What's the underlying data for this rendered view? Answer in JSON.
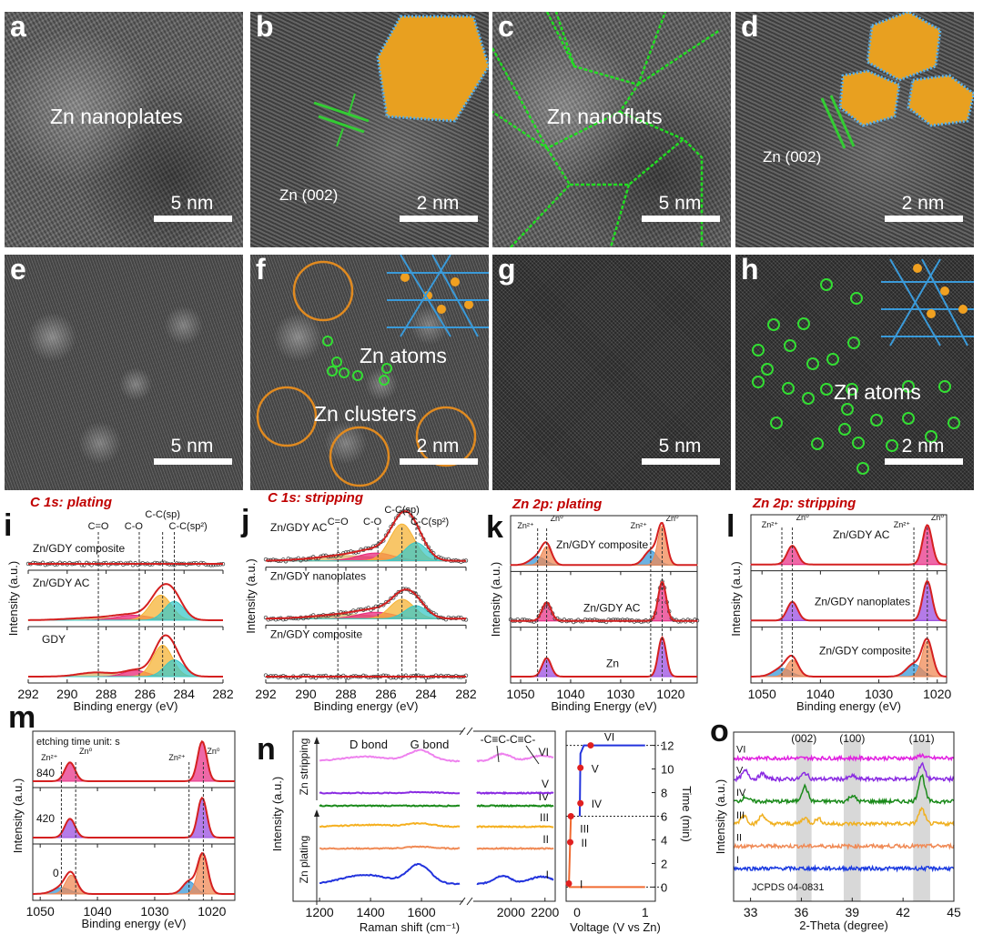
{
  "images": [
    {
      "letter": "a",
      "text": "Zn nanoplates",
      "scale": "5 nm"
    },
    {
      "letter": "b",
      "text": "Zn (002)",
      "scale": "2 nm"
    },
    {
      "letter": "c",
      "text": "Zn nanoflats",
      "scale": "5 nm"
    },
    {
      "letter": "d",
      "text": "Zn (002)",
      "scale": "2 nm"
    },
    {
      "letter": "e",
      "scale": "5 nm"
    },
    {
      "letter": "f",
      "text": "Zn atoms",
      "text2": "Zn clusters",
      "scale": "2 nm"
    },
    {
      "letter": "g",
      "scale": "5 nm"
    },
    {
      "letter": "h",
      "text": "Zn atoms",
      "scale": "2 nm"
    }
  ],
  "chart_data": [
    {
      "letter": "i",
      "type": "line",
      "title": "C 1s: plating",
      "xlabel": "Binding energy (eV)",
      "ylabel": "Intensity (a.u.)",
      "xlim": [
        292,
        282
      ],
      "xticks": [
        292,
        290,
        288,
        286,
        284,
        282
      ],
      "max_intensity": 1.0,
      "ref_lines": [
        {
          "x": 288.4,
          "label": "C=O"
        },
        {
          "x": 286.3,
          "label": "C-O"
        },
        {
          "x": 285.1,
          "label": "C-C(sp)"
        },
        {
          "x": 284.5,
          "label": "C-C(sp²)"
        }
      ],
      "traces": [
        {
          "name": "Zn/GDY composite",
          "markers": true,
          "components": []
        },
        {
          "name": "Zn/GDY AC",
          "components": [
            {
              "center": 288.5,
              "height": 0.06,
              "width": 1.4,
              "color": "#d9b56a"
            },
            {
              "center": 286.6,
              "height": 0.12,
              "width": 0.9,
              "color": "#e8287a"
            },
            {
              "center": 285.2,
              "height": 0.6,
              "width": 0.55,
              "color": "#f5b335"
            },
            {
              "center": 284.5,
              "height": 0.45,
              "width": 0.5,
              "color": "#3cc8c8"
            }
          ]
        },
        {
          "name": "GDY",
          "components": [
            {
              "center": 288.5,
              "height": 0.1,
              "width": 0.9,
              "color": "#d9b56a"
            },
            {
              "center": 286.5,
              "height": 0.15,
              "width": 0.6,
              "color": "#e8287a"
            },
            {
              "center": 285.1,
              "height": 0.75,
              "width": 0.5,
              "color": "#f5b335"
            },
            {
              "center": 284.5,
              "height": 0.4,
              "width": 0.5,
              "color": "#3cc8c8"
            }
          ]
        }
      ]
    },
    {
      "letter": "j",
      "type": "line",
      "title": "C 1s: stripping",
      "xlabel": "Binding energy (eV)",
      "ylabel": "Intensity (a.u.)",
      "xlim": [
        292,
        282
      ],
      "xticks": [
        292,
        290,
        288,
        286,
        284,
        282
      ],
      "max_intensity": 1.0,
      "ref_lines": [
        {
          "x": 288.4,
          "label": "C=O"
        },
        {
          "x": 286.4,
          "label": "C-O"
        },
        {
          "x": 285.2,
          "label": "C-C(sp)"
        },
        {
          "x": 284.5,
          "label": "C-C(sp²)"
        }
      ],
      "traces": [
        {
          "name": "Zn/GDY AC",
          "markers": true,
          "components": [
            {
              "center": 288.0,
              "height": 0.12,
              "width": 1.5,
              "color": "#d9b56a"
            },
            {
              "center": 286.5,
              "height": 0.18,
              "width": 0.9,
              "color": "#e8287a"
            },
            {
              "center": 285.2,
              "height": 0.85,
              "width": 0.6,
              "color": "#f5b335"
            },
            {
              "center": 284.5,
              "height": 0.42,
              "width": 0.55,
              "color": "#3cc8c8"
            }
          ]
        },
        {
          "name": "Zn/GDY nanoplates",
          "markers": true,
          "components": [
            {
              "center": 288.0,
              "height": 0.1,
              "width": 1.5,
              "color": "#d9b56a"
            },
            {
              "center": 286.5,
              "height": 0.15,
              "width": 0.9,
              "color": "#e8287a"
            },
            {
              "center": 285.2,
              "height": 0.45,
              "width": 0.6,
              "color": "#f5b335"
            },
            {
              "center": 284.5,
              "height": 0.3,
              "width": 0.55,
              "color": "#3cc8c8"
            }
          ]
        },
        {
          "name": "Zn/GDY composite",
          "markers": true,
          "components": []
        }
      ]
    },
    {
      "letter": "k",
      "type": "line",
      "title": "Zn 2p: plating",
      "xlabel": "Binding Energy (eV)",
      "ylabel": "Intensity (a.u.)",
      "xlim": [
        1052,
        1014.7
      ],
      "xticks": [
        1050,
        1040,
        1030,
        1020
      ],
      "max_intensity": 1.0,
      "ref_lines": [
        {
          "x": 1046.6,
          "label": "Zn²⁺"
        },
        {
          "x": 1044.8,
          "label": "Zn⁰"
        },
        {
          "x": 1024.0,
          "label": "Zn²⁺"
        },
        {
          "x": 1021.7,
          "label": "Zn⁰"
        }
      ],
      "traces": [
        {
          "name": "Zn/GDY composite",
          "components": [
            {
              "center": 1046.6,
              "height": 0.2,
              "width": 1.5,
              "color": "#3a9ad9"
            },
            {
              "center": 1044.8,
              "height": 0.45,
              "width": 1.0,
              "color": "#f08a55"
            },
            {
              "center": 1024.0,
              "height": 0.35,
              "width": 1.3,
              "color": "#3a9ad9"
            },
            {
              "center": 1021.7,
              "height": 0.95,
              "width": 0.9,
              "color": "#f08a55"
            }
          ]
        },
        {
          "name": "Zn/GDY AC",
          "markers": true,
          "components": [
            {
              "center": 1044.8,
              "height": 0.45,
              "width": 0.9,
              "color": "#e8358a"
            },
            {
              "center": 1021.7,
              "height": 0.95,
              "width": 0.8,
              "color": "#e8358a"
            }
          ]
        },
        {
          "name": "Zn",
          "components": [
            {
              "center": 1044.8,
              "height": 0.45,
              "width": 0.9,
              "color": "#9b4fe0"
            },
            {
              "center": 1021.7,
              "height": 0.95,
              "width": 0.8,
              "color": "#9b4fe0"
            }
          ]
        }
      ]
    },
    {
      "letter": "l",
      "type": "line",
      "title": "Zn 2p: stripping",
      "xlabel": "Binding energy (eV)",
      "ylabel": "Intensity (a.u.)",
      "xlim": [
        1051.9,
        1018.4
      ],
      "xticks": [
        1050,
        1040,
        1030,
        1020
      ],
      "max_intensity": 1.0,
      "ref_lines": [
        {
          "x": 1046.6,
          "label": "Zn²⁺"
        },
        {
          "x": 1044.8,
          "label": "Zn⁰"
        },
        {
          "x": 1024.0,
          "label": "Zn²⁺"
        },
        {
          "x": 1021.7,
          "label": "Zn⁰"
        }
      ],
      "traces": [
        {
          "name": "Zn/GDY AC",
          "components": [
            {
              "center": 1044.8,
              "height": 0.45,
              "width": 0.9,
              "color": "#e8358a"
            },
            {
              "center": 1021.7,
              "height": 0.95,
              "width": 0.8,
              "color": "#e8358a"
            }
          ]
        },
        {
          "name": "Zn/GDY nanoplates",
          "components": [
            {
              "center": 1044.8,
              "height": 0.45,
              "width": 0.9,
              "color": "#9b4fe0"
            },
            {
              "center": 1021.7,
              "height": 0.95,
              "width": 0.8,
              "color": "#9b4fe0"
            }
          ]
        },
        {
          "name": "Zn/GDY composite",
          "components": [
            {
              "center": 1046.6,
              "height": 0.2,
              "width": 1.5,
              "color": "#3a9ad9"
            },
            {
              "center": 1044.8,
              "height": 0.4,
              "width": 1.0,
              "color": "#f08a55"
            },
            {
              "center": 1024.0,
              "height": 0.3,
              "width": 1.3,
              "color": "#3a9ad9"
            },
            {
              "center": 1021.7,
              "height": 0.85,
              "width": 0.9,
              "color": "#f08a55"
            }
          ]
        }
      ]
    },
    {
      "letter": "m",
      "type": "line",
      "title": "",
      "annotation": "etching time unit: s",
      "xlabel": "Binding energy (eV)",
      "ylabel": "Intensity (a.u.)",
      "xlim": [
        1051.3,
        1016
      ],
      "xticks": [
        1050,
        1040,
        1030,
        1020
      ],
      "max_intensity": 1.0,
      "ref_lines": [
        {
          "x": 1046.3,
          "label": "Zn²⁺"
        },
        {
          "x": 1043.8,
          "label": "Zn⁰"
        },
        {
          "x": 1024.0,
          "label": "Zn²⁺"
        },
        {
          "x": 1021.5,
          "label": "Zn⁰"
        }
      ],
      "traces": [
        {
          "name": "840",
          "components": [
            {
              "center": 1044.8,
              "height": 0.45,
              "width": 0.9,
              "color": "#e8358a"
            },
            {
              "center": 1021.7,
              "height": 0.95,
              "width": 0.8,
              "color": "#e8358a"
            }
          ]
        },
        {
          "name": "420",
          "components": [
            {
              "center": 1044.8,
              "height": 0.45,
              "width": 0.9,
              "color": "#9b4fe0"
            },
            {
              "center": 1021.7,
              "height": 0.95,
              "width": 0.8,
              "color": "#9b4fe0"
            }
          ]
        },
        {
          "name": "0",
          "components": [
            {
              "center": 1046.3,
              "height": 0.15,
              "width": 1.5,
              "color": "#3a9ad9"
            },
            {
              "center": 1044.6,
              "height": 0.45,
              "width": 1.0,
              "color": "#f08a55"
            },
            {
              "center": 1024.0,
              "height": 0.3,
              "width": 1.1,
              "color": "#3a9ad9"
            },
            {
              "center": 1021.6,
              "height": 0.95,
              "width": 0.9,
              "color": "#f08a55"
            }
          ]
        }
      ]
    },
    {
      "letter": "n",
      "type": "line",
      "xlabel": "Raman shift (cm⁻¹)",
      "ylabel": "Intensity (a.u.)",
      "xticks": [
        1200,
        1400,
        1600,
        2000,
        2200
      ],
      "ylim": [
        -1.9,
        16.8
      ],
      "annotations": {
        "d": "D bond",
        "g": "G bond",
        "c": "-C≡C-C≡C-",
        "strip": "Zn stripping",
        "plate": "Zn plating"
      },
      "series": [
        {
          "name": "I",
          "color": "#2233dd",
          "offset": 0,
          "peaks": [
            [
              1380,
              1.0,
              90
            ],
            [
              1590,
              2.1,
              45
            ],
            [
              1950,
              0.9,
              50
            ],
            [
              2180,
              0.8,
              70
            ]
          ]
        },
        {
          "name": "II",
          "color": "#f08a55",
          "offset": 3.9,
          "peaks": [
            [
              1590,
              0.2,
              50
            ]
          ]
        },
        {
          "name": "III",
          "color": "#f5b020",
          "offset": 6.3,
          "peaks": [
            [
              1390,
              0.2,
              90
            ],
            [
              1595,
              0.35,
              50
            ]
          ]
        },
        {
          "name": "IV",
          "color": "#1a8a1a",
          "offset": 8.6,
          "peaks": []
        },
        {
          "name": "V",
          "color": "#8a2be2",
          "offset": 10.0,
          "peaks": [
            [
              1600,
              0.1,
              50
            ]
          ]
        },
        {
          "name": "VI",
          "color": "#ee82ee",
          "offset": 13.5,
          "peaks": [
            [
              1380,
              0.5,
              90
            ],
            [
              1595,
              1.2,
              45
            ],
            [
              1950,
              0.8,
              50
            ],
            [
              2180,
              0.6,
              70
            ]
          ]
        }
      ]
    },
    {
      "letter": "",
      "type": "line",
      "xlabel": "Voltage (V vs Zn)",
      "ylabel": "Time (min)",
      "xlim": [
        -0.16,
        1.15
      ],
      "ylim": [
        -1.2,
        13.2
      ],
      "xticks": [
        0,
        1
      ],
      "yticks": [
        0,
        2,
        4,
        6,
        8,
        10,
        12
      ],
      "points": [
        {
          "label": "I",
          "v": -0.12,
          "t": 0.3
        },
        {
          "label": "II",
          "v": -0.1,
          "t": 3.8
        },
        {
          "label": "III",
          "v": -0.09,
          "t": 6.0
        },
        {
          "label": "IV",
          "v": 0.05,
          "t": 7.1
        },
        {
          "label": "V",
          "v": 0.05,
          "t": 10.1
        },
        {
          "label": "VI",
          "v": 0.2,
          "t": 12.0
        }
      ],
      "plating_color": "#f06a30",
      "stripping_color": "#2233dd"
    },
    {
      "letter": "o",
      "type": "line",
      "xlabel": "2-Theta (degree)",
      "ylabel": "Intensity (a.u.)",
      "xlim": [
        32,
        45
      ],
      "ylim": [
        -4.4,
        18.3
      ],
      "xticks": [
        33,
        36,
        39,
        42,
        45
      ],
      "reference": "JCPDS 04-0831",
      "bands": [
        {
          "range": [
            35.7,
            36.6
          ],
          "label": "(002)"
        },
        {
          "range": [
            38.5,
            39.5
          ],
          "label": "(100)"
        },
        {
          "range": [
            42.6,
            43.6
          ],
          "label": "(101)"
        }
      ],
      "series": [
        {
          "name": "VI",
          "color": "#e020e0",
          "offset": 14.8,
          "peaks": [
            [
              43.1,
              0.4
            ]
          ]
        },
        {
          "name": "V",
          "color": "#8a2be2",
          "offset": 12,
          "peaks": [
            [
              32.7,
              1.1
            ],
            [
              33.7,
              0.7
            ],
            [
              36.2,
              0.8
            ],
            [
              39,
              0.4
            ],
            [
              43.1,
              2.0
            ]
          ]
        },
        {
          "name": "IV",
          "color": "#1a8a1a",
          "offset": 9,
          "peaks": [
            [
              32.7,
              0.6
            ],
            [
              36.2,
              2.0
            ],
            [
              39,
              0.8
            ],
            [
              43.1,
              3.5
            ]
          ]
        },
        {
          "name": "III",
          "color": "#f0b020",
          "offset": 6,
          "peaks": [
            [
              32.6,
              1.2
            ],
            [
              33.7,
              1.2
            ],
            [
              36.2,
              0.8
            ],
            [
              37,
              0.7
            ],
            [
              43.1,
              2.0
            ]
          ]
        },
        {
          "name": "II",
          "color": "#f08a55",
          "offset": 3,
          "peaks": []
        },
        {
          "name": "I",
          "color": "#1a3ae0",
          "offset": 0,
          "peaks": []
        }
      ]
    }
  ]
}
